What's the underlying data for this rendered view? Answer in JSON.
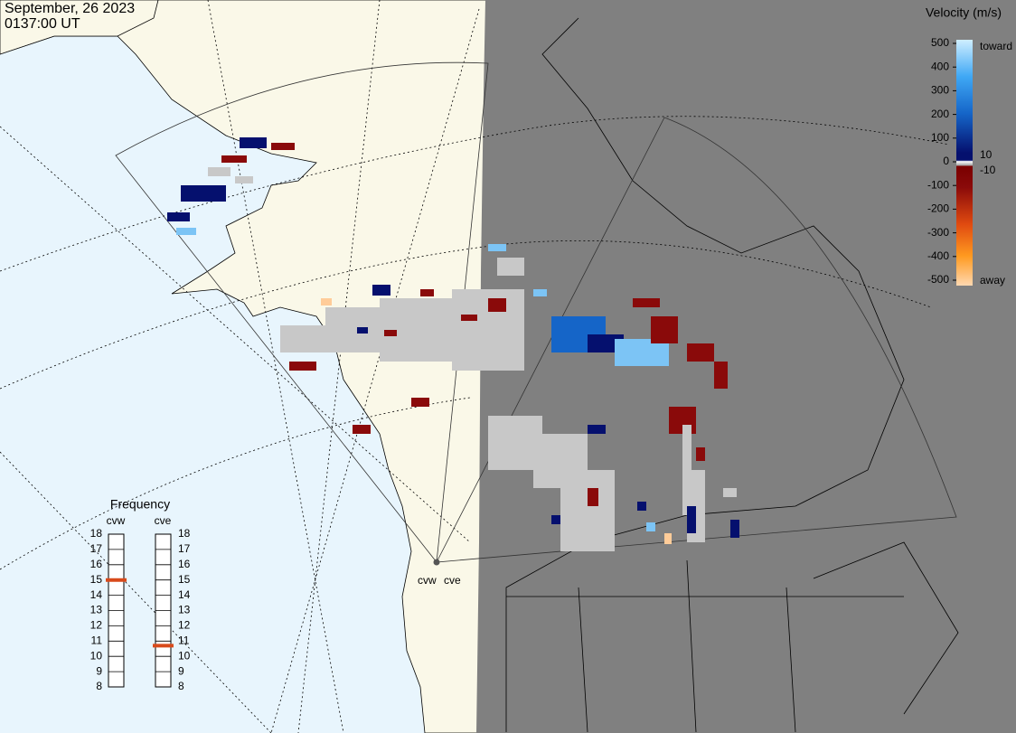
{
  "header": {
    "date": "September, 26 2023",
    "time": "0137:00 UT"
  },
  "velocity_scale": {
    "title": "Velocity (m/s)",
    "ticks": [
      500,
      400,
      300,
      200,
      100,
      0,
      -100,
      -200,
      -300,
      -400,
      -500
    ],
    "inner_ticks": [
      10,
      -10
    ],
    "toward": "toward",
    "away": "away"
  },
  "frequency": {
    "title": "Frequency",
    "ticks": [
      8,
      9,
      10,
      11,
      12,
      13,
      14,
      15,
      16,
      17,
      18
    ],
    "radars": [
      {
        "name": "cvw",
        "value": 15
      },
      {
        "name": "cve",
        "value": 10.7
      }
    ]
  },
  "radar_sites": [
    "cvw",
    "cve"
  ]
}
